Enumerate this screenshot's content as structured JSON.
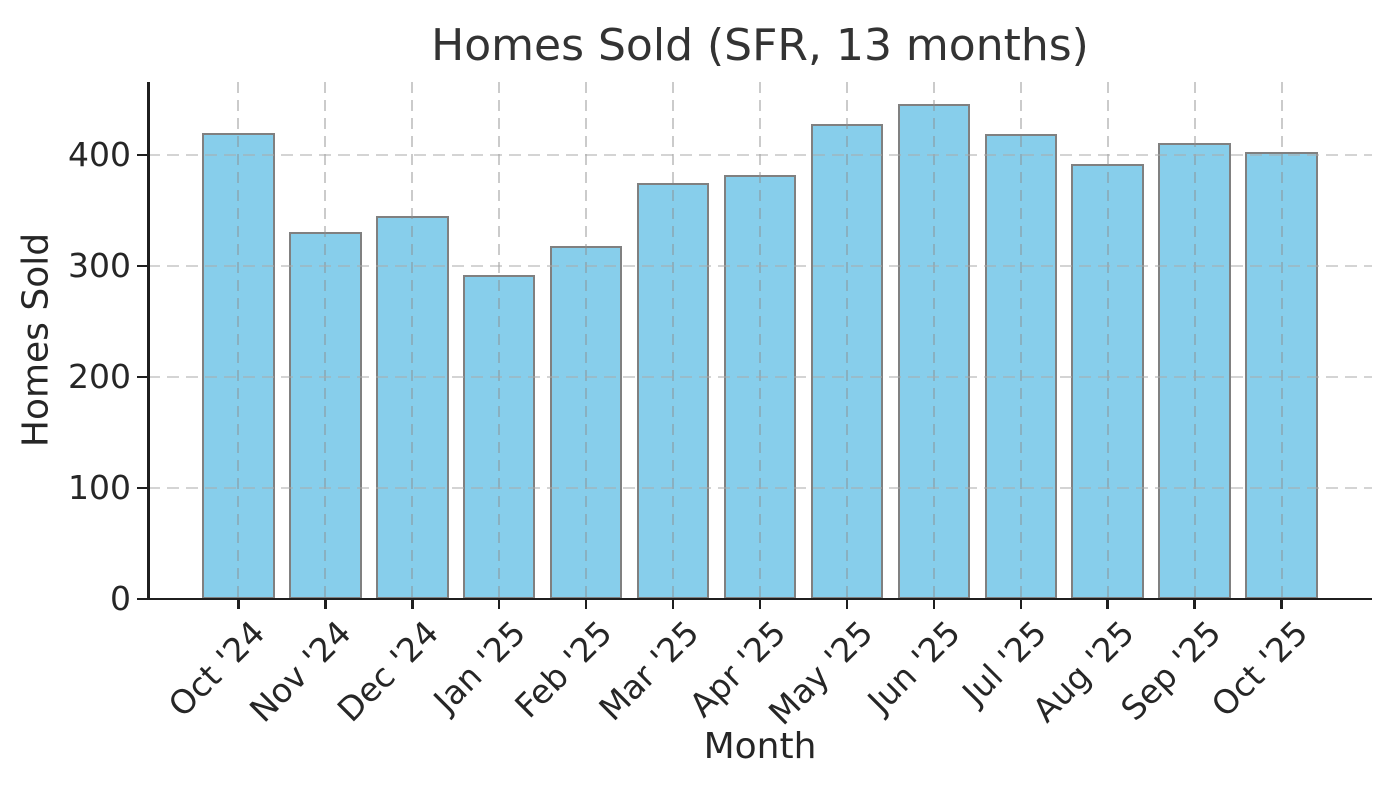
{
  "chart_data": {
    "type": "bar",
    "title": "Homes Sold (SFR, 13 months)",
    "xlabel": "Month",
    "ylabel": "Homes Sold",
    "categories": [
      "Oct '24",
      "Nov '24",
      "Dec '24",
      "Jan '25",
      "Feb '25",
      "Mar '25",
      "Apr '25",
      "May '25",
      "Jun '25",
      "Jul '25",
      "Aug '25",
      "Sep '25",
      "Oct '25"
    ],
    "values": [
      420,
      331,
      345,
      292,
      318,
      375,
      382,
      428,
      446,
      419,
      392,
      411,
      403
    ],
    "yticks": [
      0,
      100,
      200,
      300,
      400
    ],
    "ylim": [
      0,
      466
    ],
    "grid": "dashed-both-axes-above-bars",
    "legend_position": "none",
    "bar_color": "#87CEEB",
    "bar_edge_color": "#808080",
    "spine_color": "#1f1f1f",
    "text_color": "#262626",
    "title_color": "#333333"
  }
}
